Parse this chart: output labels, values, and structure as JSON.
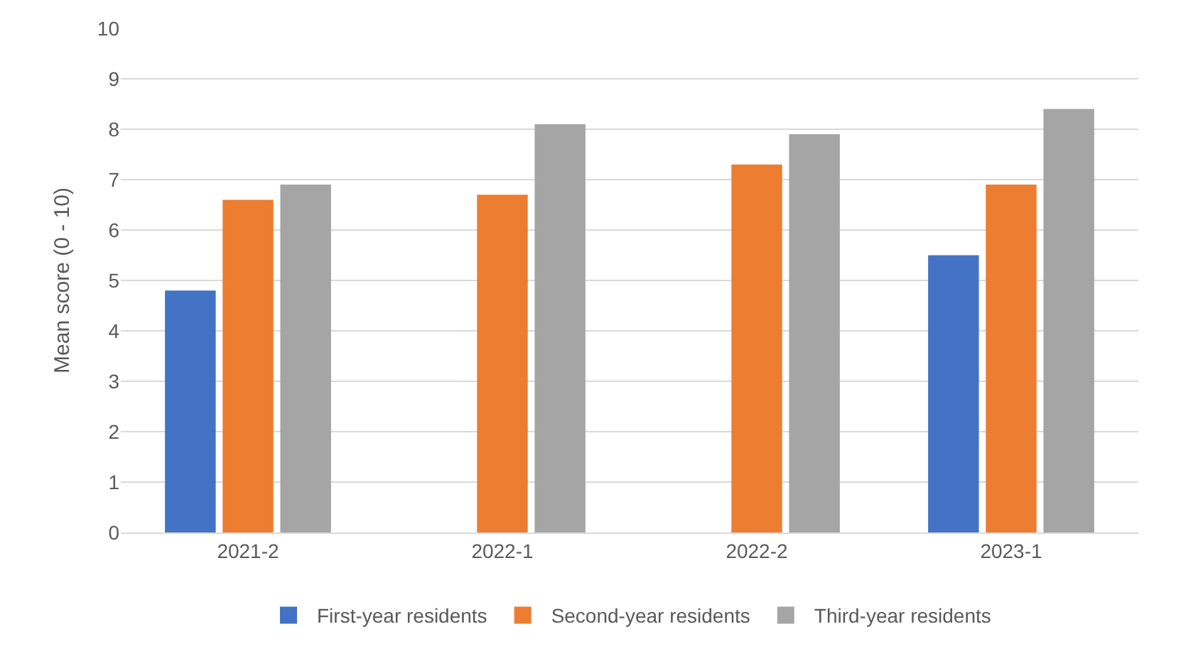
{
  "chart_data": {
    "type": "bar",
    "ylabel": "Mean score (0 - 10)",
    "categories": [
      "2021-2",
      "2022-1",
      "2022-2",
      "2023-1"
    ],
    "series": [
      {
        "name": "First-year residents",
        "color": "#4472c4",
        "values": [
          4.8,
          null,
          null,
          5.5
        ]
      },
      {
        "name": "Second-year residents",
        "color": "#ed7d31",
        "values": [
          6.6,
          6.7,
          7.3,
          6.9
        ]
      },
      {
        "name": "Third-year residents",
        "color": "#a5a5a5",
        "values": [
          6.9,
          8.1,
          7.9,
          8.4
        ]
      }
    ],
    "ylim": [
      0,
      10
    ],
    "yticks": [
      0,
      1,
      2,
      3,
      4,
      5,
      6,
      7,
      8,
      9,
      10
    ],
    "grid": "y",
    "legend": "bottom"
  }
}
